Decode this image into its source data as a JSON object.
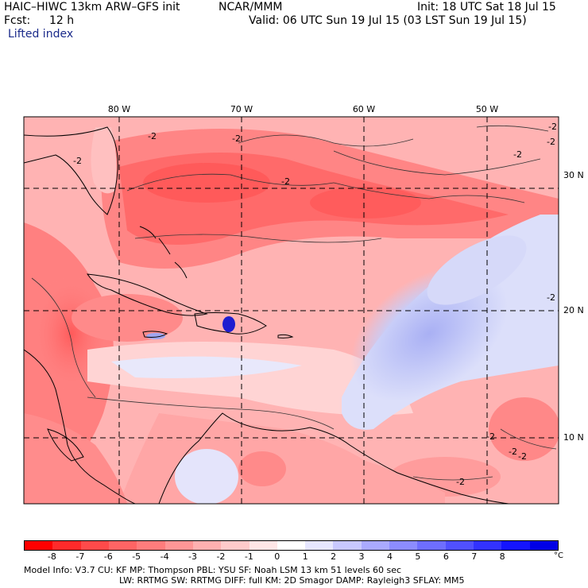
{
  "header": {
    "model": "HAIC–HIWC 13km ARW–GFS init",
    "org": "NCAR/MMM",
    "init": "Init: 18 UTC Sat 18 Jul 15",
    "fcst_label": "Fcst:",
    "fcst_value": "12 h",
    "valid": "Valid: 06 UTC Sun 19 Jul 15 (03 LST Sun 19 Jul 15)",
    "field": "Lifted index"
  },
  "map": {
    "lon_labels": [
      "80 W",
      "70 W",
      "60 W",
      "50 W"
    ],
    "lat_labels": [
      "30 N",
      "20 N",
      "10 N"
    ],
    "contour_labels": [
      "-2",
      "-2",
      "-2",
      "-2",
      "-2",
      "-2",
      "-2",
      "-2",
      "-2",
      "-2",
      "-2",
      "-2"
    ]
  },
  "colorbar": {
    "ticks": [
      "-8",
      "-7",
      "-6",
      "-5",
      "-4",
      "-3",
      "-2",
      "-1",
      "0",
      "1",
      "2",
      "3",
      "4",
      "5",
      "6",
      "7",
      "8"
    ],
    "unit": "°C",
    "colors": [
      "#ff0000",
      "#ff2a2a",
      "#ff4a4a",
      "#ff6464",
      "#ff7c7c",
      "#ff9696",
      "#ffb0b0",
      "#ffcaca",
      "#ffe6e6",
      "#ffffff",
      "#e6e6ff",
      "#c8c8ff",
      "#aaaaff",
      "#8c8cff",
      "#6e6eff",
      "#5050ff",
      "#3232ff",
      "#1414ff",
      "#0000e6"
    ]
  },
  "footer": {
    "line1": "Model Info: V3.7     CU: KF      MP: Thompson     PBL: YSU      SF: Noah LSM     13 km    51 levels   60 sec",
    "line2": "LW: RRTMG    SW: RRTMG  DIFF: full    KM: 2D Smagor DAMP: Rayleigh3   SFLAY: MM5"
  }
}
